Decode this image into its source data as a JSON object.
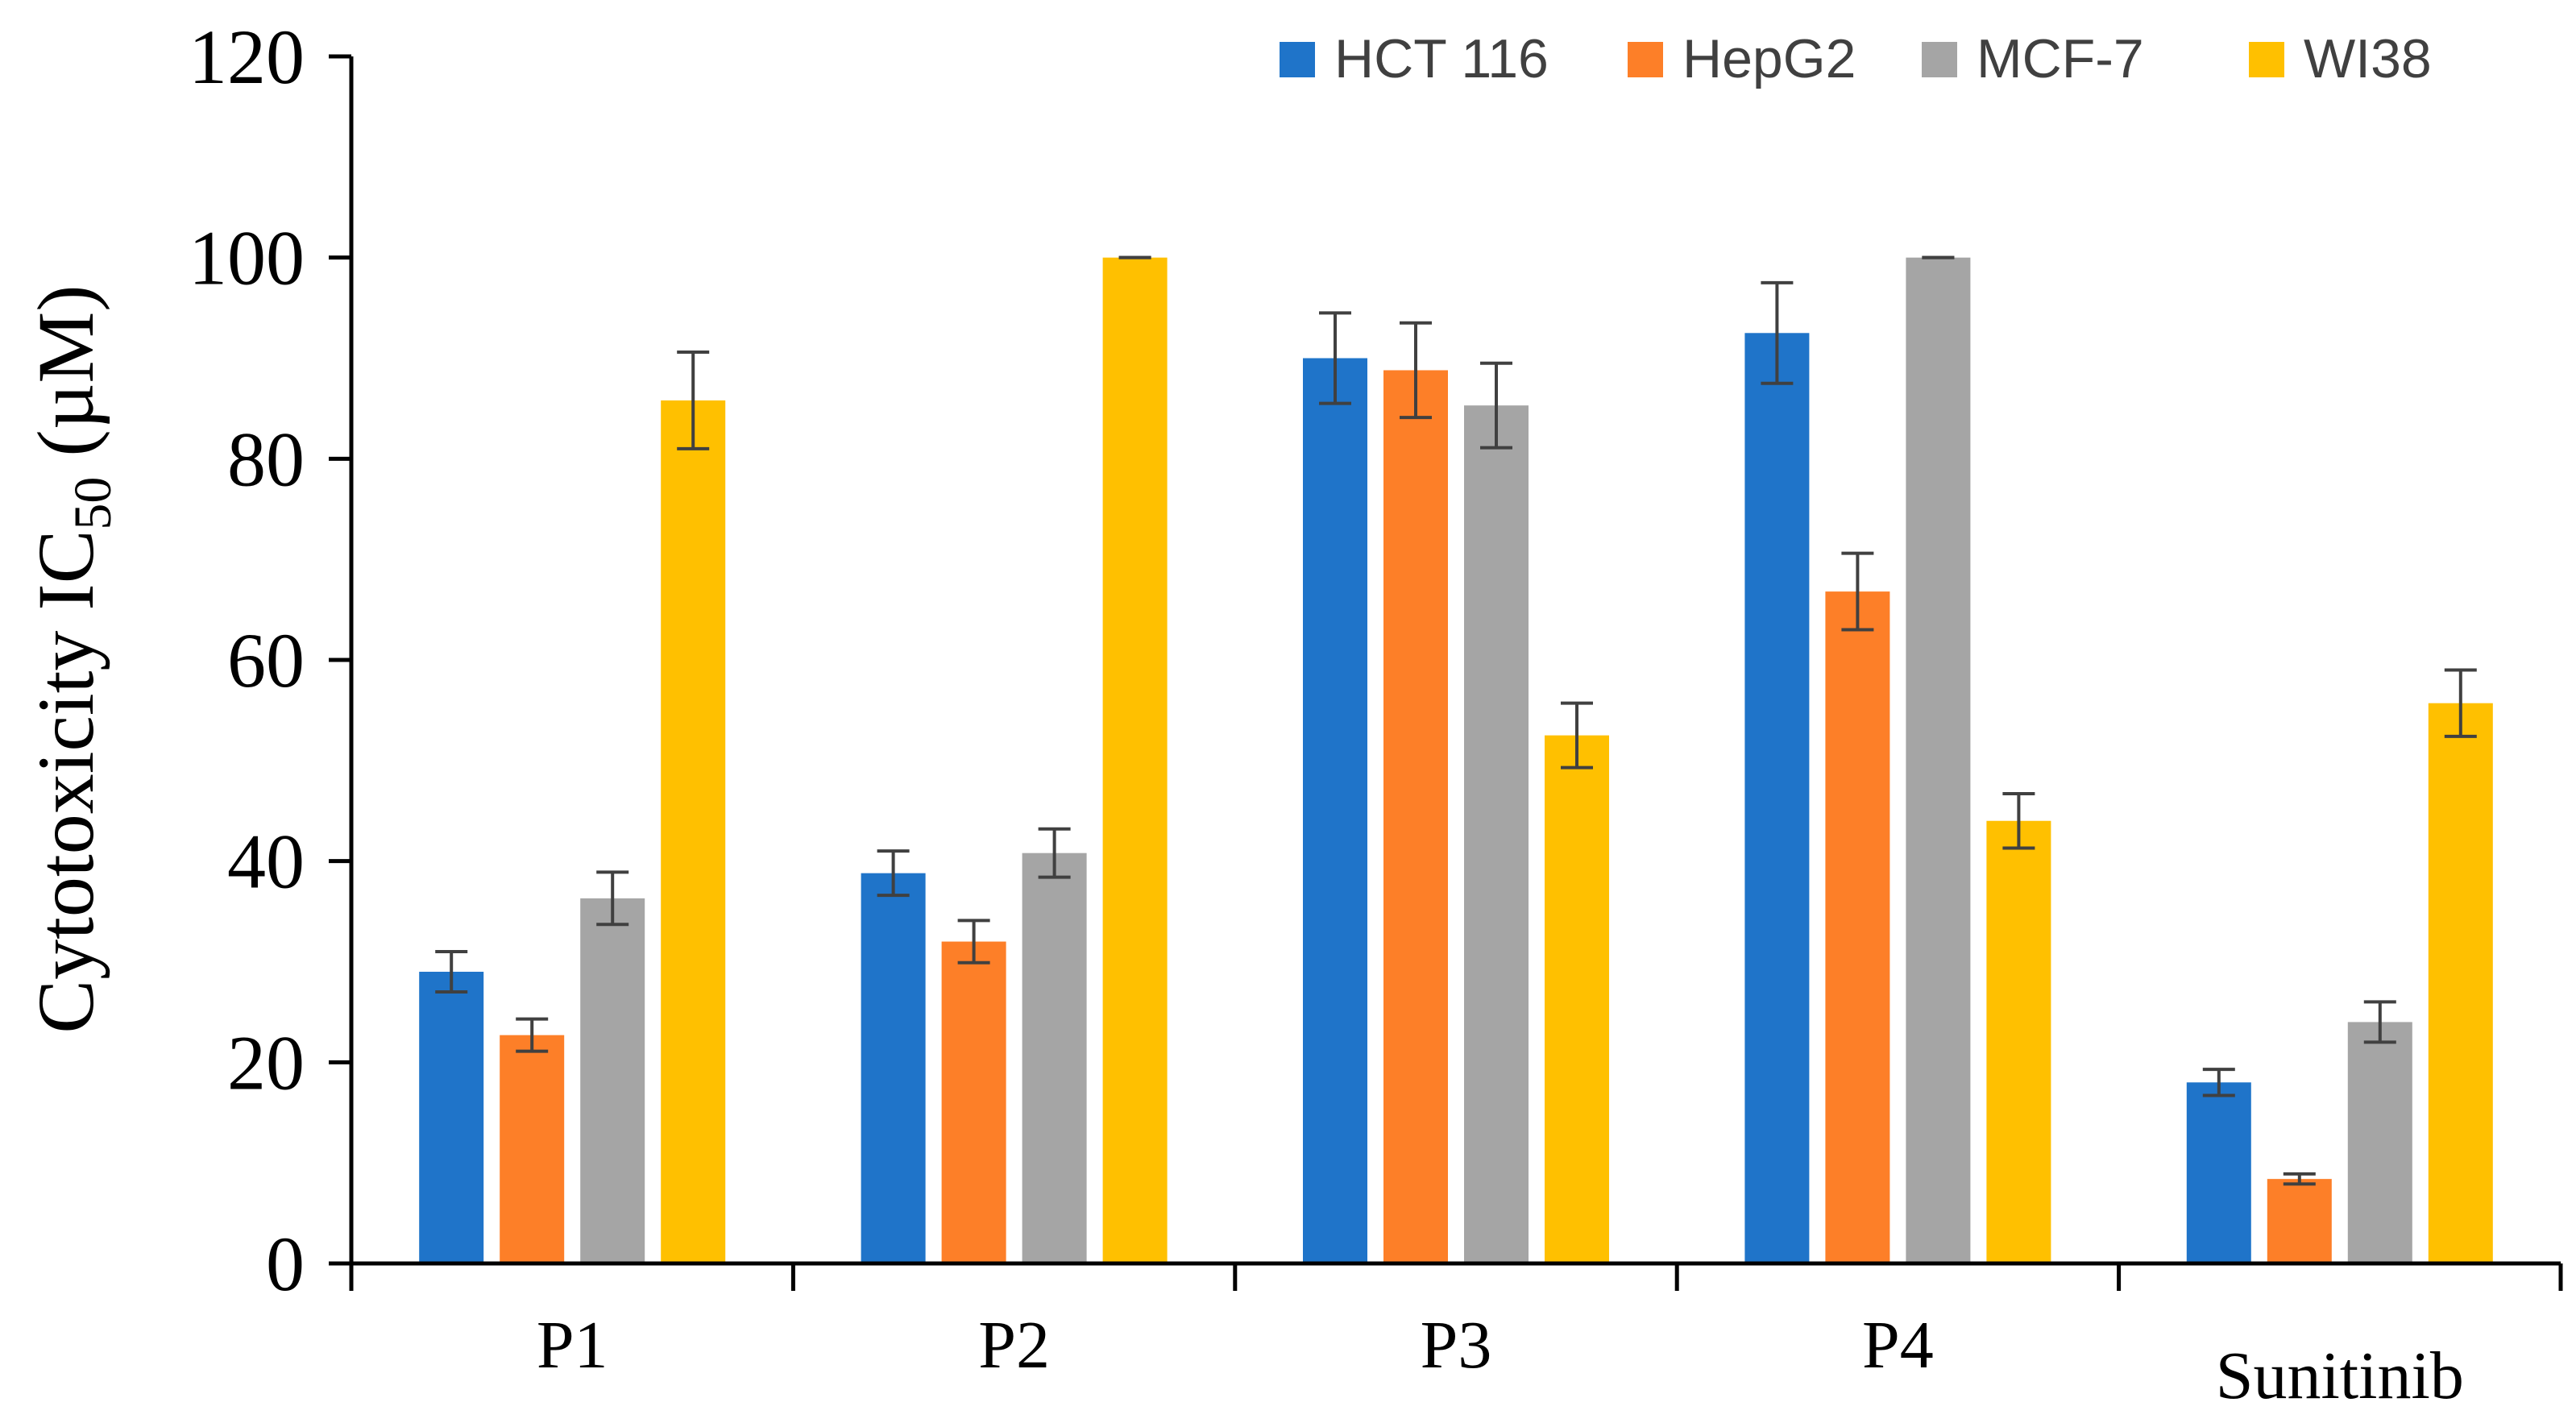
{
  "chart_data": {
    "type": "bar",
    "title": "",
    "xlabel": "",
    "ylabel_main": "Cytotoxicity IC",
    "ylabel_sub": "50",
    "ylabel_unit": " (µM)",
    "ylim": [
      0,
      120
    ],
    "yticks": [
      "0",
      "20",
      "40",
      "60",
      "80",
      "100",
      "120"
    ],
    "categories": [
      "P1",
      "P2",
      "P3",
      "P4",
      "Sunitinib"
    ],
    "legend_position": "top-right",
    "error_color": "#404040",
    "series": [
      {
        "name": "HCT 116",
        "color": "#1f74c9",
        "values": [
          29,
          38.8,
          90,
          92.5,
          18
        ],
        "errors": [
          2,
          2.2,
          4.5,
          5,
          1.3
        ]
      },
      {
        "name": "HepG2",
        "color": "#fd7f28",
        "values": [
          22.7,
          32,
          88.8,
          66.8,
          8.4
        ],
        "errors": [
          1.6,
          2.1,
          4.7,
          3.8,
          0.5
        ]
      },
      {
        "name": "MCF-7",
        "color": "#a5a5a5",
        "values": [
          36.3,
          40.8,
          85.3,
          100,
          24
        ],
        "errors": [
          2.6,
          2.4,
          4.2,
          0,
          2
        ]
      },
      {
        "name": "WI38",
        "color": "#ffc000",
        "values": [
          85.8,
          100,
          52.5,
          44,
          55.7
        ],
        "errors": [
          4.8,
          0,
          3.2,
          2.7,
          3.3
        ]
      }
    ]
  }
}
